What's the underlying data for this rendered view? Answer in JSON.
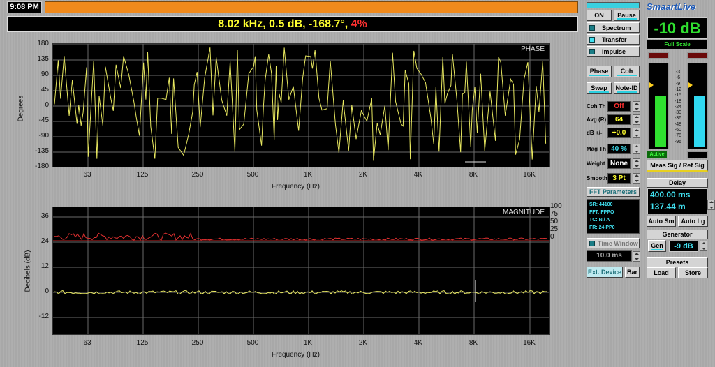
{
  "clock": "9:08 PM",
  "readout": {
    "main": "8.02 kHz, 0.5 dB, -168.7°,",
    "coh": "4%"
  },
  "phase": {
    "label": "PHASE",
    "ylabel": "Degrees",
    "xlabel": "Frequency (Hz)",
    "yticks": [
      "180",
      "135",
      "90",
      "45",
      "0",
      "-45",
      "-90",
      "-135",
      "-180"
    ]
  },
  "mag": {
    "label": "MAGNITUDE",
    "ylabel": "Decibels (dB)",
    "xlabel": "Frequency (Hz)",
    "yticks": [
      "36",
      "24",
      "12",
      "0",
      "-12"
    ],
    "cticks": [
      "100",
      "75",
      "50",
      "25",
      "0"
    ]
  },
  "xticks": [
    "63",
    "125",
    "250",
    "500",
    "1K",
    "2K",
    "4K",
    "8K",
    "16K"
  ],
  "controls": {
    "on": "ON",
    "pause": "Pause",
    "spectrum": "Spectrum",
    "transfer": "Transfer",
    "impulse": "Impulse",
    "phase": "Phase",
    "coh": "Coh",
    "swap": "Swap",
    "noteid": "Note-ID"
  },
  "settings": [
    {
      "label": "Coh Th",
      "value": "Off",
      "color": "#ff3030"
    },
    {
      "label": "Avg (R)",
      "value": "64",
      "color": "#ffff30"
    },
    {
      "label": "dB +/-",
      "value": "+0.0",
      "color": "#ffff30"
    },
    {
      "label": "Mag Th",
      "value": "40 %",
      "color": "#40e0f0"
    },
    {
      "label": "Weight",
      "value": "None",
      "color": "#ffffff"
    },
    {
      "label": "Smooth",
      "value": "3 Pt",
      "color": "#ffff30"
    }
  ],
  "fft": {
    "title": "FFT Parameters",
    "sr": "SR: 44100",
    "fft": "FFT: FPPO",
    "tc": "TC: N / A",
    "fr": "FR: 24 PP0"
  },
  "time_window": {
    "label": "Time Window",
    "value": "10.0 ms"
  },
  "ext_device": "Ext. Device",
  "bar": "Bar",
  "logo": "SmaartLive",
  "level": {
    "value": "-10 dB",
    "scale": "Full Scale",
    "ticks": [
      "-3",
      "-6",
      "-9",
      "-12",
      "-15",
      "-18",
      "-24",
      "-30",
      "-36",
      "-48",
      "-60",
      "-78",
      "-96"
    ],
    "left_fill": 0.62,
    "right_fill": 0.62
  },
  "active": "Active",
  "meas_sig": "Meas Sig / Ref Sig",
  "delay": {
    "title": "Delay",
    "ms": "400.00 ms",
    "m": "137.44 m",
    "auto_sm": "Auto Sm",
    "auto_lg": "Auto Lg"
  },
  "generator": {
    "title": "Generator",
    "gen": "Gen",
    "level": "-9 dB"
  },
  "presets": {
    "title": "Presets",
    "load": "Load",
    "store": "Store"
  }
}
